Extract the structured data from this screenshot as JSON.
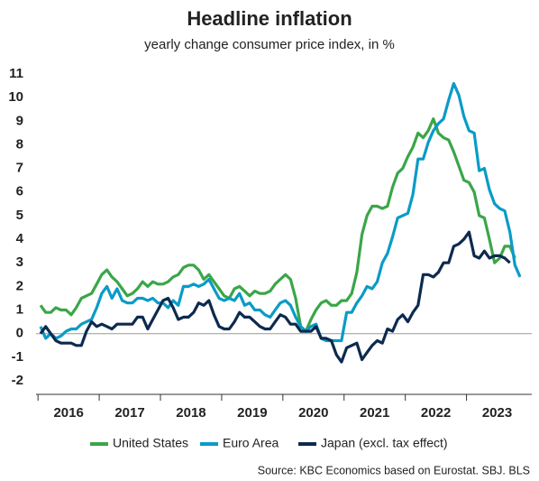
{
  "chart_data": {
    "type": "line",
    "title": "Headline inflation",
    "subtitle": "yearly change consumer price index, in %",
    "source": "Source: KBC Economics based on Eurostat. SBJ. BLS",
    "categories": [
      null,
      null,
      null,
      null,
      null,
      null,
      "2016",
      null,
      null,
      null,
      null,
      null,
      null,
      null,
      null,
      null,
      null,
      null,
      "2017",
      null,
      null,
      null,
      null,
      null,
      null,
      null,
      null,
      null,
      null,
      null,
      "2018",
      null,
      null,
      null,
      null,
      null,
      null,
      null,
      null,
      null,
      null,
      null,
      "2019",
      null,
      null,
      null,
      null,
      null,
      null,
      null,
      null,
      null,
      null,
      null,
      "2020",
      null,
      null,
      null,
      null,
      null,
      null,
      null,
      null,
      null,
      null,
      null,
      "2021",
      null,
      null,
      null,
      null,
      null,
      null,
      null,
      null,
      null,
      null,
      null,
      "2022",
      null,
      null,
      null,
      null,
      null,
      null,
      null,
      null,
      null,
      null,
      null,
      "2023",
      null,
      null,
      null,
      null
    ],
    "series": [
      {
        "name": "United States",
        "color": "#3aa648",
        "values": [
          1.2,
          0.9,
          0.9,
          1.1,
          1.0,
          1.0,
          0.8,
          1.1,
          1.5,
          1.6,
          1.7,
          2.1,
          2.5,
          2.7,
          2.4,
          2.2,
          1.9,
          1.6,
          1.7,
          1.9,
          2.2,
          2.0,
          2.2,
          2.1,
          2.1,
          2.2,
          2.4,
          2.5,
          2.8,
          2.9,
          2.9,
          2.7,
          2.3,
          2.5,
          2.2,
          1.9,
          1.6,
          1.5,
          1.9,
          2.0,
          1.8,
          1.6,
          1.8,
          1.7,
          1.7,
          1.8,
          2.1,
          2.3,
          2.5,
          2.3,
          1.5,
          0.3,
          0.1,
          0.6,
          1.0,
          1.3,
          1.4,
          1.2,
          1.2,
          1.4,
          1.4,
          1.7,
          2.6,
          4.2,
          5.0,
          5.4,
          5.4,
          5.3,
          5.4,
          6.2,
          6.8,
          7.0,
          7.5,
          7.9,
          8.5,
          8.3,
          8.6,
          9.1,
          8.5,
          8.3,
          8.2,
          7.7,
          7.1,
          6.5,
          6.4,
          6.0,
          5.0,
          4.9,
          4.0,
          3.0,
          3.2,
          3.7,
          3.7,
          3.2,
          null
        ]
      },
      {
        "name": "Euro Area",
        "color": "#0a9bc7",
        "values": [
          0.3,
          -0.2,
          0.0,
          -0.2,
          -0.1,
          0.1,
          0.2,
          0.2,
          0.4,
          0.5,
          0.6,
          1.1,
          1.7,
          2.0,
          1.5,
          1.9,
          1.4,
          1.3,
          1.3,
          1.5,
          1.5,
          1.4,
          1.5,
          1.3,
          1.3,
          1.1,
          1.4,
          1.2,
          2.0,
          2.0,
          2.1,
          2.0,
          2.1,
          2.3,
          1.9,
          1.5,
          1.4,
          1.5,
          1.4,
          1.7,
          1.2,
          1.3,
          1.0,
          1.0,
          0.8,
          0.7,
          1.0,
          1.3,
          1.4,
          1.2,
          0.7,
          0.3,
          0.1,
          0.3,
          0.4,
          -0.2,
          -0.3,
          -0.3,
          -0.3,
          -0.3,
          0.9,
          0.9,
          1.3,
          1.6,
          2.0,
          1.9,
          2.2,
          3.0,
          3.4,
          4.1,
          4.9,
          5.0,
          5.1,
          5.9,
          7.4,
          7.4,
          8.1,
          8.6,
          8.9,
          9.1,
          9.9,
          10.6,
          10.1,
          9.2,
          8.6,
          8.5,
          6.9,
          7.0,
          6.1,
          5.5,
          5.3,
          5.2,
          4.3,
          2.9,
          2.4
        ]
      },
      {
        "name": "Japan (excl. tax effect)",
        "color": "#0d2a4f",
        "values": [
          0.0,
          0.3,
          0.0,
          -0.3,
          -0.4,
          -0.4,
          -0.4,
          -0.5,
          -0.5,
          0.1,
          0.5,
          0.3,
          0.4,
          0.3,
          0.2,
          0.4,
          0.4,
          0.4,
          0.4,
          0.7,
          0.7,
          0.2,
          0.6,
          1.0,
          1.4,
          1.5,
          1.1,
          0.6,
          0.7,
          0.7,
          0.9,
          1.3,
          1.2,
          1.4,
          0.8,
          0.3,
          0.2,
          0.2,
          0.5,
          0.9,
          0.7,
          0.7,
          0.5,
          0.3,
          0.2,
          0.2,
          0.5,
          0.8,
          0.7,
          0.4,
          0.4,
          0.1,
          0.1,
          0.1,
          0.3,
          -0.2,
          -0.2,
          -0.3,
          -0.9,
          -1.2,
          -0.6,
          -0.5,
          -0.4,
          -1.1,
          -0.8,
          -0.5,
          -0.3,
          -0.4,
          0.2,
          0.1,
          0.6,
          0.8,
          0.5,
          0.9,
          1.2,
          2.5,
          2.5,
          2.4,
          2.6,
          3.0,
          3.0,
          3.7,
          3.8,
          4.0,
          4.3,
          3.3,
          3.2,
          3.5,
          3.2,
          3.3,
          3.3,
          3.2,
          3.0,
          null,
          null
        ]
      }
    ],
    "ylim": [
      -2,
      11
    ],
    "yticks": [
      -2,
      -1,
      0,
      1,
      2,
      3,
      4,
      5,
      6,
      7,
      8,
      9,
      10,
      11
    ],
    "grid": false,
    "legend": "bottom"
  }
}
